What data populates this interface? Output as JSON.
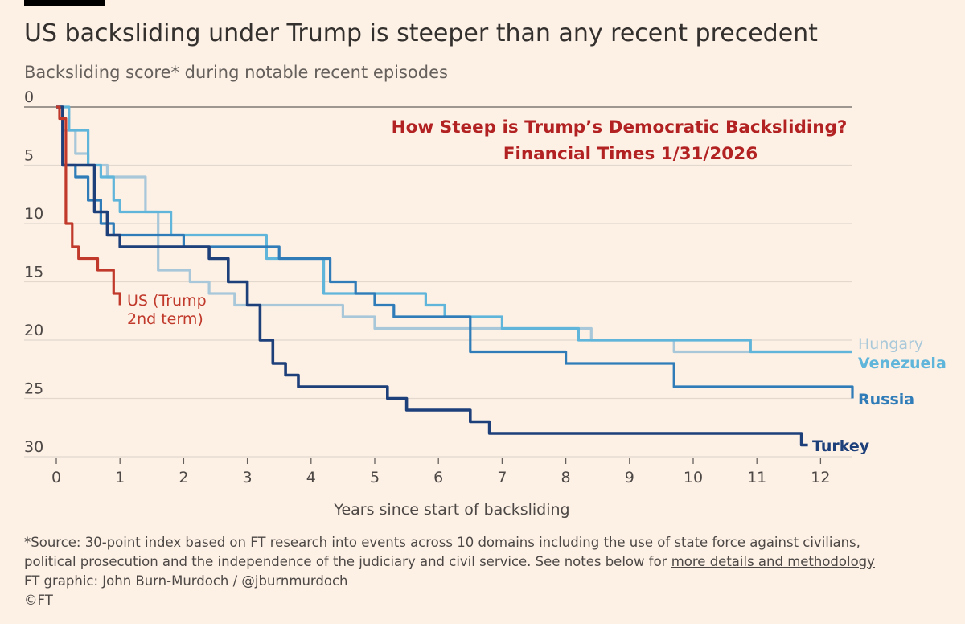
{
  "title": "US backsliding under Trump is steeper than any recent precedent",
  "subtitle": "Backsliding score* during notable recent episodes",
  "annotation": {
    "line1": "How Steep is Trump’s Democratic Backsliding?",
    "line2": "Financial Times 1/31/2026",
    "color": "#b22222"
  },
  "footnotes": {
    "source_line1": "*Source: 30-point index based on FT research into events across 10 domains including the use of state force against civilians,",
    "source_line2_prefix": "political prosecution and the independence of the judiciary and civil service. See notes below for ",
    "source_link": "more details and methodology",
    "credit": "FT graphic: John Burn-Murdoch / @jburnmurdoch",
    "copyright": "©FT"
  },
  "chart_data": {
    "type": "line",
    "xlabel": "Years since start of backsliding",
    "ylabel": "",
    "xlim": [
      0,
      12.5
    ],
    "ylim": [
      0,
      30
    ],
    "y_inverted": true,
    "xticks": [
      0,
      1,
      2,
      3,
      4,
      5,
      6,
      7,
      8,
      9,
      10,
      11,
      12
    ],
    "yticks": [
      0,
      5,
      10,
      15,
      20,
      25,
      30
    ],
    "grid": "horizontal",
    "series": [
      {
        "name": "Hungary",
        "label_lines": [
          "Hungary"
        ],
        "color": "#a8c8d9",
        "x": [
          0,
          0.1,
          0.3,
          0.5,
          0.8,
          1.0,
          1.4,
          1.6,
          2.1,
          2.4,
          2.8,
          3.2,
          4.0,
          4.5,
          5.0,
          6.0,
          7.0,
          8.0,
          8.4,
          9.2,
          9.7,
          10.5,
          11.0,
          12.5
        ],
        "y": [
          0,
          2,
          4,
          5,
          6,
          6,
          9,
          14,
          15,
          16,
          17,
          17,
          17,
          18,
          19,
          19,
          19,
          19,
          20,
          20,
          21,
          21,
          21,
          21
        ]
      },
      {
        "name": "Venezuela",
        "label_lines": [
          "Venezuela"
        ],
        "color": "#5fb5da",
        "x": [
          0,
          0.2,
          0.5,
          0.7,
          0.9,
          1.0,
          1.4,
          1.8,
          2.2,
          3.0,
          3.3,
          3.9,
          4.2,
          4.6,
          5.2,
          5.8,
          6.1,
          6.7,
          7.0,
          8.0,
          8.2,
          9.0,
          10.0,
          10.9,
          12.5
        ],
        "y": [
          0,
          2,
          5,
          6,
          8,
          9,
          9,
          11,
          11,
          11,
          13,
          13,
          16,
          16,
          16,
          17,
          18,
          18,
          19,
          19,
          20,
          20,
          20,
          21,
          21
        ]
      },
      {
        "name": "Russia",
        "label_lines": [
          "Russia"
        ],
        "color": "#2f7cb8",
        "x": [
          0,
          0.1,
          0.3,
          0.5,
          0.7,
          0.9,
          2.0,
          2.5,
          3.0,
          3.5,
          4.0,
          4.3,
          4.7,
          5.0,
          5.3,
          6.0,
          6.3,
          6.5,
          7.3,
          8.0,
          9.0,
          9.5,
          9.7,
          12.4,
          12.5
        ],
        "y": [
          0,
          5,
          6,
          8,
          10,
          11,
          12,
          12,
          12,
          13,
          13,
          15,
          16,
          17,
          18,
          18,
          18,
          21,
          21,
          22,
          22,
          22,
          24,
          24,
          25
        ]
      },
      {
        "name": "Turkey",
        "label_lines": [
          "Turkey"
        ],
        "color": "#1d3f7a",
        "x": [
          0,
          0.1,
          0.4,
          0.6,
          0.8,
          1.0,
          2.0,
          2.4,
          2.7,
          3.0,
          3.2,
          3.4,
          3.6,
          3.8,
          4.2,
          4.8,
          5.2,
          5.5,
          6.0,
          6.5,
          6.8,
          7.5,
          8.5,
          10.0,
          11.5,
          11.7,
          11.8
        ],
        "y": [
          0,
          5,
          5,
          9,
          11,
          12,
          12,
          13,
          15,
          17,
          20,
          22,
          23,
          24,
          24,
          24,
          25,
          26,
          26,
          27,
          28,
          28,
          28,
          28,
          28,
          29,
          29
        ]
      },
      {
        "name": "US (Trump 2nd term)",
        "label_lines": [
          "US (Trump",
          "2nd term)"
        ],
        "color": "#c0392b",
        "x": [
          0,
          0.05,
          0.15,
          0.25,
          0.35,
          0.5,
          0.65,
          0.8,
          0.9,
          1.0
        ],
        "y": [
          0,
          1,
          10,
          12,
          13,
          13,
          14,
          14,
          16,
          17
        ]
      }
    ]
  }
}
